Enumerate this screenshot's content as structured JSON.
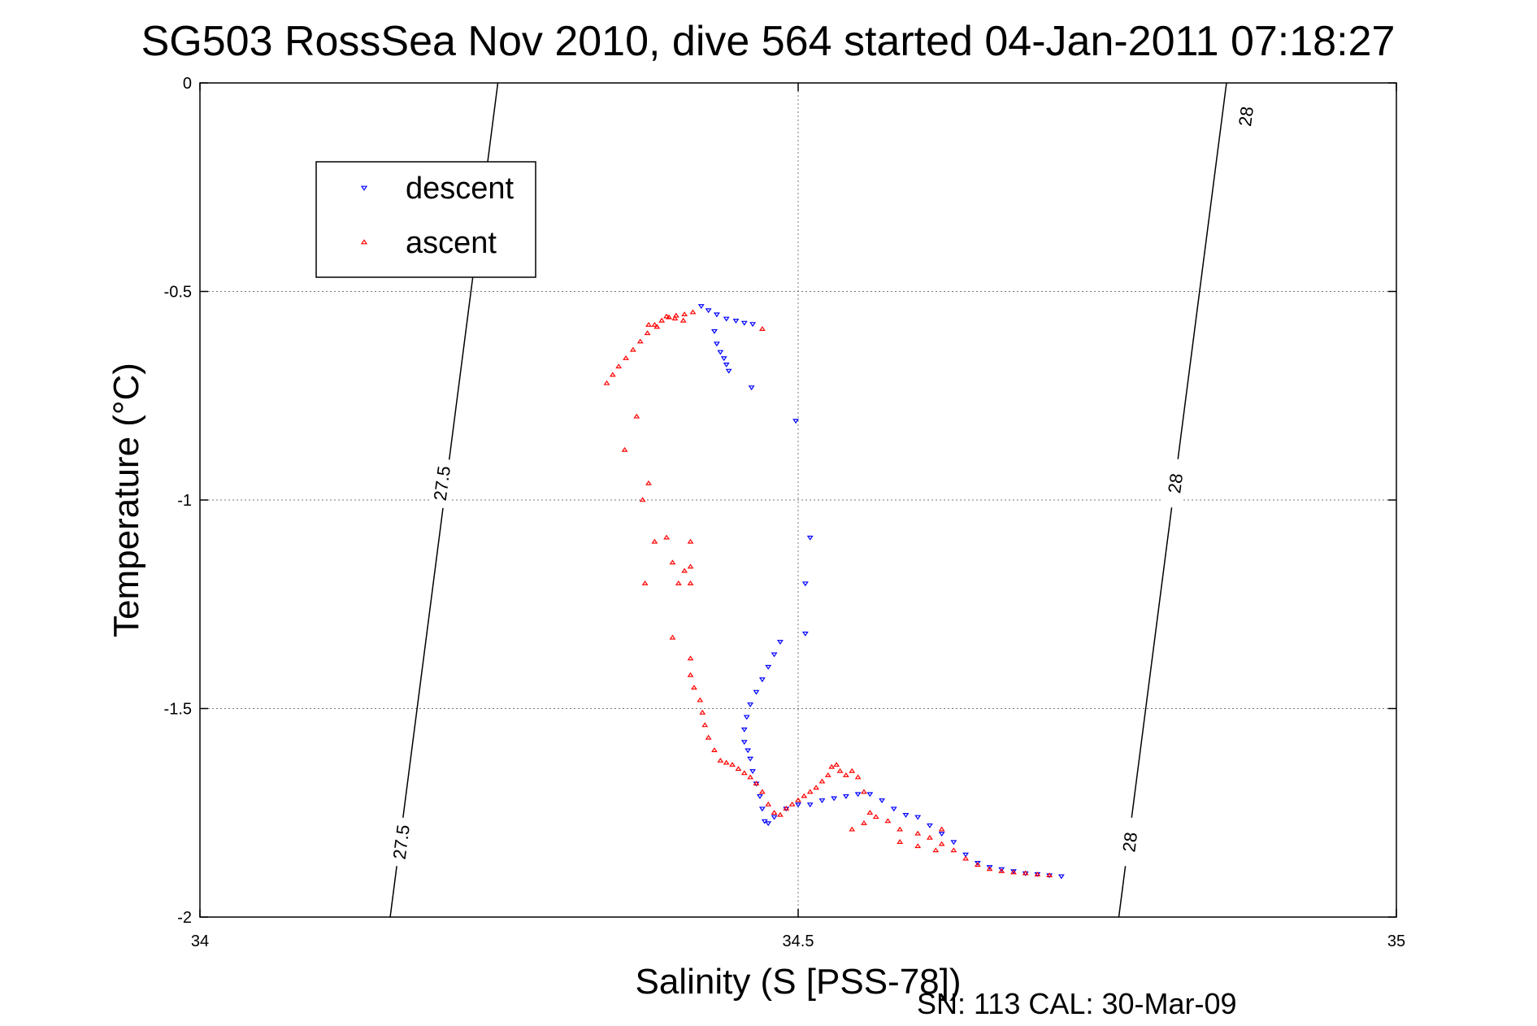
{
  "chart_data": {
    "type": "scatter",
    "title": "SG503 RossSea Nov 2010, dive 564 started 04-Jan-2011 07:18:27",
    "xlabel": "Salinity (S [PSS-78])",
    "ylabel": "Temperature (°C)",
    "xlim": [
      34,
      35
    ],
    "ylim": [
      -2,
      0
    ],
    "xticks": [
      34,
      34.5,
      35
    ],
    "yticks": [
      -2,
      -1.5,
      -1,
      -0.5,
      0
    ],
    "xtick_labels": [
      "34",
      "34.5",
      "35"
    ],
    "ytick_labels": [
      "-2",
      "-1.5",
      "-1",
      "-0.5",
      "0"
    ],
    "grid": true,
    "legend_position": "top-left",
    "footer_note": "SN: 113  CAL: 30-Mar-09",
    "contours": [
      {
        "label": "27.5",
        "label_texts": [
          "27.5",
          "27.5"
        ],
        "points": [
          [
            34.159,
            -2.0
          ],
          [
            34.249,
            0.0
          ]
        ],
        "label_at": [
          [
            34.168,
            -1.82
          ],
          [
            34.202,
            -0.96
          ]
        ]
      },
      {
        "label": "28",
        "label_texts": [
          "28",
          "28",
          "28"
        ],
        "points": [
          [
            34.768,
            -2.0
          ],
          [
            34.858,
            0.0
          ]
        ],
        "label_at": [
          [
            34.777,
            -1.82
          ],
          [
            34.815,
            -0.96
          ],
          [
            34.874,
            -0.08
          ]
        ]
      }
    ],
    "series": [
      {
        "name": "descent",
        "color": "#0000ff",
        "marker": "triangle-down",
        "points": [
          [
            34.419,
            -0.535
          ],
          [
            34.425,
            -0.545
          ],
          [
            34.432,
            -0.555
          ],
          [
            34.44,
            -0.565
          ],
          [
            34.448,
            -0.57
          ],
          [
            34.455,
            -0.575
          ],
          [
            34.462,
            -0.578
          ],
          [
            34.43,
            -0.595
          ],
          [
            34.432,
            -0.625
          ],
          [
            34.435,
            -0.645
          ],
          [
            34.438,
            -0.66
          ],
          [
            34.44,
            -0.675
          ],
          [
            34.442,
            -0.69
          ],
          [
            34.461,
            -0.73
          ],
          [
            34.498,
            -0.81
          ],
          [
            34.51,
            -1.09
          ],
          [
            34.506,
            -1.2
          ],
          [
            34.506,
            -1.32
          ],
          [
            34.485,
            -1.34
          ],
          [
            34.48,
            -1.37
          ],
          [
            34.475,
            -1.4
          ],
          [
            34.47,
            -1.43
          ],
          [
            34.465,
            -1.46
          ],
          [
            34.46,
            -1.49
          ],
          [
            34.457,
            -1.52
          ],
          [
            34.455,
            -1.55
          ],
          [
            34.455,
            -1.58
          ],
          [
            34.458,
            -1.6
          ],
          [
            34.46,
            -1.62
          ],
          [
            34.462,
            -1.65
          ],
          [
            34.465,
            -1.68
          ],
          [
            34.468,
            -1.71
          ],
          [
            34.47,
            -1.74
          ],
          [
            34.472,
            -1.77
          ],
          [
            34.475,
            -1.775
          ],
          [
            34.48,
            -1.76
          ],
          [
            34.49,
            -1.74
          ],
          [
            34.5,
            -1.73
          ],
          [
            34.51,
            -1.73
          ],
          [
            34.52,
            -1.72
          ],
          [
            34.53,
            -1.715
          ],
          [
            34.54,
            -1.71
          ],
          [
            34.55,
            -1.705
          ],
          [
            34.56,
            -1.705
          ],
          [
            34.57,
            -1.72
          ],
          [
            34.58,
            -1.74
          ],
          [
            34.59,
            -1.755
          ],
          [
            34.6,
            -1.76
          ],
          [
            34.61,
            -1.78
          ],
          [
            34.62,
            -1.8
          ],
          [
            34.63,
            -1.82
          ],
          [
            34.64,
            -1.85
          ],
          [
            34.65,
            -1.87
          ],
          [
            34.66,
            -1.88
          ],
          [
            34.67,
            -1.885
          ],
          [
            34.68,
            -1.89
          ],
          [
            34.69,
            -1.895
          ],
          [
            34.7,
            -1.897
          ],
          [
            34.71,
            -1.9
          ],
          [
            34.72,
            -1.902
          ]
        ]
      },
      {
        "name": "ascent",
        "color": "#ff0000",
        "marker": "triangle-up",
        "points": [
          [
            34.412,
            -0.55
          ],
          [
            34.405,
            -0.555
          ],
          [
            34.398,
            -0.558
          ],
          [
            34.392,
            -0.562
          ],
          [
            34.386,
            -0.57
          ],
          [
            34.38,
            -0.58
          ],
          [
            34.374,
            -0.6
          ],
          [
            34.368,
            -0.62
          ],
          [
            34.362,
            -0.64
          ],
          [
            34.356,
            -0.66
          ],
          [
            34.35,
            -0.68
          ],
          [
            34.345,
            -0.7
          ],
          [
            34.34,
            -0.72
          ],
          [
            34.375,
            -0.58
          ],
          [
            34.382,
            -0.585
          ],
          [
            34.39,
            -0.56
          ],
          [
            34.397,
            -0.565
          ],
          [
            34.404,
            -0.57
          ],
          [
            34.47,
            -0.59
          ],
          [
            34.365,
            -0.8
          ],
          [
            34.355,
            -0.88
          ],
          [
            34.375,
            -0.96
          ],
          [
            34.37,
            -1.0
          ],
          [
            34.38,
            -1.1
          ],
          [
            34.39,
            -1.09
          ],
          [
            34.41,
            -1.1
          ],
          [
            34.395,
            -1.15
          ],
          [
            34.405,
            -1.17
          ],
          [
            34.41,
            -1.16
          ],
          [
            34.372,
            -1.2
          ],
          [
            34.4,
            -1.2
          ],
          [
            34.41,
            -1.2
          ],
          [
            34.395,
            -1.33
          ],
          [
            34.41,
            -1.38
          ],
          [
            34.41,
            -1.42
          ],
          [
            34.413,
            -1.45
          ],
          [
            34.418,
            -1.48
          ],
          [
            34.42,
            -1.51
          ],
          [
            34.422,
            -1.54
          ],
          [
            34.425,
            -1.57
          ],
          [
            34.43,
            -1.6
          ],
          [
            34.435,
            -1.625
          ],
          [
            34.44,
            -1.63
          ],
          [
            34.445,
            -1.635
          ],
          [
            34.45,
            -1.645
          ],
          [
            34.455,
            -1.655
          ],
          [
            34.46,
            -1.665
          ],
          [
            34.465,
            -1.68
          ],
          [
            34.47,
            -1.7
          ],
          [
            34.475,
            -1.73
          ],
          [
            34.48,
            -1.75
          ],
          [
            34.485,
            -1.755
          ],
          [
            34.49,
            -1.74
          ],
          [
            34.495,
            -1.73
          ],
          [
            34.5,
            -1.72
          ],
          [
            34.505,
            -1.71
          ],
          [
            34.51,
            -1.7
          ],
          [
            34.515,
            -1.69
          ],
          [
            34.52,
            -1.675
          ],
          [
            34.525,
            -1.66
          ],
          [
            34.528,
            -1.64
          ],
          [
            34.532,
            -1.635
          ],
          [
            34.535,
            -1.65
          ],
          [
            34.54,
            -1.66
          ],
          [
            34.545,
            -1.65
          ],
          [
            34.55,
            -1.665
          ],
          [
            34.555,
            -1.7
          ],
          [
            34.56,
            -1.75
          ],
          [
            34.565,
            -1.76
          ],
          [
            34.575,
            -1.77
          ],
          [
            34.585,
            -1.79
          ],
          [
            34.6,
            -1.8
          ],
          [
            34.61,
            -1.81
          ],
          [
            34.62,
            -1.825
          ],
          [
            34.63,
            -1.84
          ],
          [
            34.64,
            -1.86
          ],
          [
            34.65,
            -1.875
          ],
          [
            34.66,
            -1.885
          ],
          [
            34.67,
            -1.89
          ],
          [
            34.68,
            -1.893
          ],
          [
            34.69,
            -1.895
          ],
          [
            34.7,
            -1.898
          ],
          [
            34.71,
            -1.9
          ],
          [
            34.62,
            -1.79
          ],
          [
            34.545,
            -1.79
          ],
          [
            34.555,
            -1.775
          ],
          [
            34.585,
            -1.82
          ],
          [
            34.6,
            -1.83
          ],
          [
            34.615,
            -1.84
          ]
        ]
      }
    ]
  }
}
